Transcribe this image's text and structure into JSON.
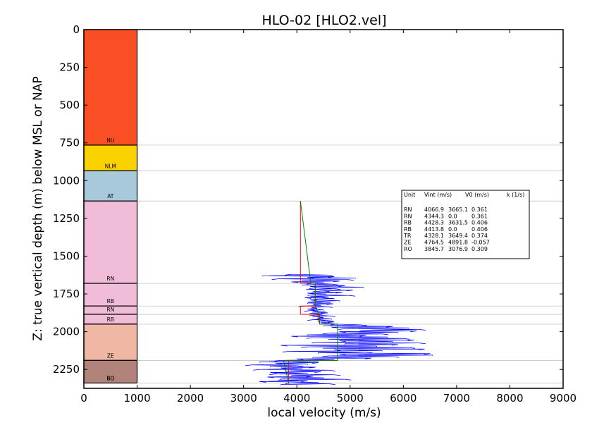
{
  "chart_data": {
    "type": "line",
    "title": "HLO-02 [HLO2.vel]",
    "xlabel": "local velocity (m/s)",
    "ylabel": "Z: true vertical depth (m) below MSL or NAP",
    "xlim": [
      0,
      9000
    ],
    "ylim": [
      2375,
      0
    ],
    "x_ticks": [
      "0",
      "1000",
      "2000",
      "3000",
      "4000",
      "5000",
      "6000",
      "7000",
      "8000",
      "9000"
    ],
    "y_ticks": [
      "0",
      "250",
      "500",
      "750",
      "1000",
      "1250",
      "1500",
      "1750",
      "2000",
      "2250"
    ],
    "x_tick_values": [
      0,
      1000,
      2000,
      3000,
      4000,
      5000,
      6000,
      7000,
      8000,
      9000
    ],
    "y_tick_values": [
      0,
      250,
      500,
      750,
      1000,
      1250,
      1500,
      1750,
      2000,
      2250
    ],
    "units": [
      {
        "label": "NU",
        "top": 0,
        "base": 765,
        "color": "#fa4f24"
      },
      {
        "label": "NLM",
        "top": 765,
        "base": 935,
        "color": "#f9d200"
      },
      {
        "label": "AT",
        "top": 935,
        "base": 1135,
        "color": "#a8c8dc"
      },
      {
        "label": "RN",
        "top": 1135,
        "base": 1680,
        "color": "#f1bcd8"
      },
      {
        "label": "RB",
        "top": 1680,
        "base": 1830,
        "color": "#f1bcd8"
      },
      {
        "label": "RN",
        "top": 1830,
        "base": 1885,
        "color": "#f1bcd8"
      },
      {
        "label": "RB",
        "top": 1885,
        "base": 1950,
        "color": "#f1bcd8"
      },
      {
        "label": "ZE",
        "top": 1950,
        "base": 2190,
        "color": "#f0b8a4"
      },
      {
        "label": "RO",
        "top": 2190,
        "base": 2340,
        "color": "#b1837b"
      },
      {
        "label": "BO",
        "top": 2340,
        "base": 2340,
        "color": "#b1837b"
      }
    ],
    "unit_column_x": [
      0,
      1000
    ],
    "boundaries": [
      765,
      935,
      1135,
      1680,
      1830,
      1885,
      1950,
      2190,
      2340
    ],
    "table": {
      "header": {
        "unit": "Unit",
        "vint": "Vint (m/s)",
        "v0": "V0 (m/s)",
        "k": "k (1/s)"
      },
      "rows": [
        {
          "unit": "RN",
          "vint": "4066.9",
          "v0": "3665.1",
          "k": "0.361"
        },
        {
          "unit": "RN",
          "vint": "4344.3",
          "v0": "0.0",
          "k": "0.361"
        },
        {
          "unit": "RB",
          "vint": "4428.3",
          "v0": "3631.5",
          "k": "0.406"
        },
        {
          "unit": "RB",
          "vint": "4413.8",
          "v0": "0.0",
          "k": "0.406"
        },
        {
          "unit": "TR",
          "vint": "4328.1",
          "v0": "3649.4",
          "k": "0.374"
        },
        {
          "unit": "ZE",
          "vint": "4764.5",
          "v0": "4891.8",
          "k": "-0.057"
        },
        {
          "unit": "RO",
          "vint": "3845.7",
          "v0": "3076.9",
          "k": "0.309"
        }
      ]
    },
    "series": [
      {
        "color": "#ff0000",
        "style": "interval velocity steps",
        "points": [
          [
            4066.9,
            1135
          ],
          [
            4066.9,
            1680
          ],
          [
            4344.3,
            1680
          ],
          [
            4344.3,
            1830
          ],
          [
            4066.9,
            1830
          ],
          [
            4066.9,
            1885
          ],
          [
            4428.3,
            1885
          ],
          [
            4428.3,
            1950
          ],
          [
            4764.5,
            1950
          ],
          [
            4764.5,
            2190
          ],
          [
            3845.7,
            2190
          ],
          [
            3845.7,
            2340
          ]
        ]
      },
      {
        "color": "#008000",
        "style": "V0 + k*z linear trends",
        "points": [
          [
            4066.9,
            1135
          ],
          [
            4262.0,
            1680
          ],
          [
            4344.3,
            1680
          ],
          [
            4344.3,
            1830
          ],
          [
            4410.0,
            1885
          ],
          [
            4428.3,
            1950
          ],
          [
            4764.5,
            1950
          ],
          [
            4764.5,
            2190
          ],
          [
            3750.0,
            2190
          ],
          [
            3845.7,
            2340
          ]
        ]
      },
      {
        "color": "#0000ff",
        "style": "sonic log local velocity",
        "depth_range": [
          1620,
          2350
        ],
        "samples": [
          [
            1620,
            3900
          ],
          [
            1625,
            4560
          ],
          [
            1630,
            3350
          ],
          [
            1635,
            4700
          ],
          [
            1640,
            4200
          ],
          [
            1645,
            5100
          ],
          [
            1650,
            3650
          ],
          [
            1655,
            4950
          ],
          [
            1660,
            4100
          ],
          [
            1665,
            4800
          ],
          [
            1670,
            3900
          ],
          [
            1675,
            4500
          ],
          [
            1680,
            4300
          ],
          [
            1685,
            4650
          ],
          [
            1690,
            4100
          ],
          [
            1695,
            4900
          ],
          [
            1700,
            4250
          ],
          [
            1705,
            5250
          ],
          [
            1710,
            4350
          ],
          [
            1715,
            4700
          ],
          [
            1720,
            4180
          ],
          [
            1725,
            5050
          ],
          [
            1730,
            4500
          ],
          [
            1735,
            4300
          ],
          [
            1740,
            4850
          ],
          [
            1745,
            4200
          ],
          [
            1750,
            4550
          ],
          [
            1755,
            4320
          ],
          [
            1760,
            4980
          ],
          [
            1765,
            4260
          ],
          [
            1770,
            4600
          ],
          [
            1775,
            4150
          ],
          [
            1780,
            4700
          ],
          [
            1785,
            4400
          ],
          [
            1790,
            4250
          ],
          [
            1795,
            4800
          ],
          [
            1800,
            4330
          ],
          [
            1805,
            4520
          ],
          [
            1810,
            4200
          ],
          [
            1815,
            4680
          ],
          [
            1820,
            4300
          ],
          [
            1825,
            4450
          ],
          [
            1830,
            4150
          ],
          [
            1835,
            4550
          ],
          [
            1840,
            4280
          ],
          [
            1845,
            4380
          ],
          [
            1850,
            4200
          ],
          [
            1855,
            4500
          ],
          [
            1860,
            4260
          ],
          [
            1865,
            4420
          ],
          [
            1870,
            4300
          ],
          [
            1875,
            4580
          ],
          [
            1880,
            4240
          ],
          [
            1885,
            4470
          ],
          [
            1890,
            4350
          ],
          [
            1895,
            4600
          ],
          [
            1900,
            4300
          ],
          [
            1905,
            4500
          ],
          [
            1910,
            4380
          ],
          [
            1915,
            4650
          ],
          [
            1920,
            4320
          ],
          [
            1925,
            4560
          ],
          [
            1930,
            4400
          ],
          [
            1935,
            4700
          ],
          [
            1940,
            4450
          ],
          [
            1945,
            4600
          ],
          [
            1950,
            4750
          ],
          [
            1955,
            5200
          ],
          [
            1960,
            4500
          ],
          [
            1965,
            5800
          ],
          [
            1970,
            4650
          ],
          [
            1975,
            6100
          ],
          [
            1980,
            4900
          ],
          [
            1985,
            6300
          ],
          [
            1990,
            5200
          ],
          [
            1995,
            6250
          ],
          [
            2000,
            4800
          ],
          [
            2005,
            5900
          ],
          [
            2010,
            4600
          ],
          [
            2015,
            5600
          ],
          [
            2020,
            4200
          ],
          [
            2025,
            5300
          ],
          [
            2030,
            3900
          ],
          [
            2035,
            5700
          ],
          [
            2040,
            4300
          ],
          [
            2045,
            6000
          ],
          [
            2050,
            4600
          ],
          [
            2055,
            6200
          ],
          [
            2060,
            4800
          ],
          [
            2065,
            5800
          ],
          [
            2070,
            4400
          ],
          [
            2075,
            6300
          ],
          [
            2080,
            4900
          ],
          [
            2085,
            5900
          ],
          [
            2090,
            3700
          ],
          [
            2095,
            5500
          ],
          [
            2100,
            4200
          ],
          [
            2105,
            6100
          ],
          [
            2110,
            4500
          ],
          [
            2115,
            6400
          ],
          [
            2120,
            4700
          ],
          [
            2125,
            5600
          ],
          [
            2130,
            3850
          ],
          [
            2135,
            5300
          ],
          [
            2140,
            4400
          ],
          [
            2145,
            6500
          ],
          [
            2150,
            4800
          ],
          [
            2155,
            6550
          ],
          [
            2160,
            4600
          ],
          [
            2165,
            5800
          ],
          [
            2170,
            4300
          ],
          [
            2175,
            5400
          ],
          [
            2180,
            4000
          ],
          [
            2185,
            4700
          ],
          [
            2190,
            3700
          ],
          [
            2195,
            4300
          ],
          [
            2200,
            3300
          ],
          [
            2205,
            4400
          ],
          [
            2210,
            3600
          ],
          [
            2215,
            4200
          ],
          [
            2220,
            3150
          ],
          [
            2225,
            4000
          ],
          [
            2230,
            3500
          ],
          [
            2235,
            4350
          ],
          [
            2240,
            3700
          ],
          [
            2245,
            4100
          ],
          [
            2250,
            3300
          ],
          [
            2255,
            4600
          ],
          [
            2260,
            3800
          ],
          [
            2265,
            4450
          ],
          [
            2270,
            3500
          ],
          [
            2275,
            4200
          ],
          [
            2280,
            3600
          ],
          [
            2285,
            4700
          ],
          [
            2290,
            3900
          ],
          [
            2295,
            4300
          ],
          [
            2300,
            3450
          ],
          [
            2305,
            4500
          ],
          [
            2310,
            3800
          ],
          [
            2315,
            4900
          ],
          [
            2320,
            3650
          ],
          [
            2325,
            4200
          ],
          [
            2330,
            3300
          ],
          [
            2335,
            4400
          ],
          [
            2340,
            3900
          ],
          [
            2345,
            4600
          ],
          [
            2350,
            3700
          ]
        ]
      }
    ]
  }
}
